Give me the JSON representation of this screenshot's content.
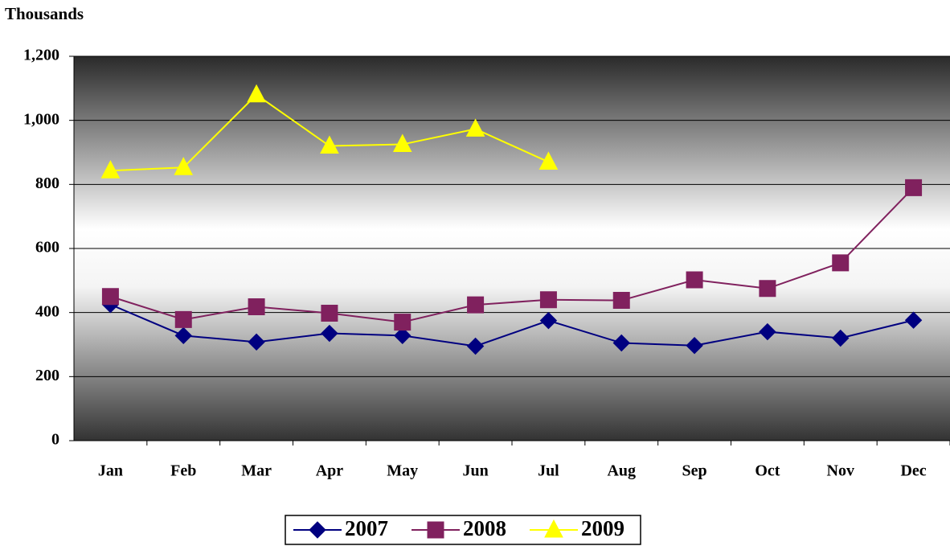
{
  "chart_data": {
    "type": "line",
    "title": "Thousands",
    "categories": [
      "Jan",
      "Feb",
      "Mar",
      "Apr",
      "May",
      "Jun",
      "Jul",
      "Aug",
      "Sep",
      "Oct",
      "Nov",
      "Dec"
    ],
    "series": [
      {
        "name": "2007",
        "color": "#000080",
        "values": [
          425,
          328,
          308,
          335,
          328,
          295,
          375,
          305,
          297,
          340,
          320,
          376
        ]
      },
      {
        "name": "2008",
        "color": "#80215e",
        "values": [
          450,
          378,
          418,
          398,
          370,
          424,
          440,
          438,
          502,
          475,
          555,
          790
        ]
      },
      {
        "name": "2009",
        "color": "#ffff00",
        "values": [
          843,
          853,
          1080,
          920,
          925,
          973,
          870,
          null,
          null,
          null,
          null,
          null
        ]
      }
    ],
    "ylim": [
      0,
      1200
    ],
    "yticks": [
      0,
      200,
      400,
      600,
      800,
      {
        "value": 1000,
        "label": "1,000"
      },
      {
        "value": 1200,
        "label": "1,200"
      }
    ],
    "grid": true
  }
}
